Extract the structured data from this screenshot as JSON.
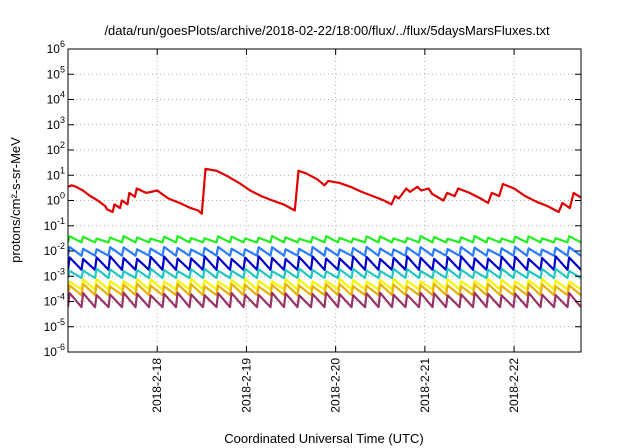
{
  "chart_data": {
    "type": "line",
    "title": "/data/run/goesPlots/archive/2018-02-22/18:00/flux/../flux/5daysMarsFluxes.txt",
    "xlabel": "Coordinated Universal Time (UTC)",
    "ylabel": "protons/cm²-s-sr-MeV",
    "yscale": "log",
    "ylim": [
      1e-06,
      1000000.0
    ],
    "xlim": [
      "2018-02-17 00:00",
      "2018-02-22 18:00"
    ],
    "x_ticks": [
      "2018-2-18",
      "2018-2-19",
      "2018-2-20",
      "2018-2-21",
      "2018-2-22"
    ],
    "y_ticks": [
      {
        "base": "10",
        "exp": "-6"
      },
      {
        "base": "10",
        "exp": "-5"
      },
      {
        "base": "10",
        "exp": "-4"
      },
      {
        "base": "10",
        "exp": "-3"
      },
      {
        "base": "10",
        "exp": "-2"
      },
      {
        "base": "10",
        "exp": "-1"
      },
      {
        "base": "10",
        "exp": "0"
      },
      {
        "base": "10",
        "exp": "1"
      },
      {
        "base": "10",
        "exp": "2"
      },
      {
        "base": "10",
        "exp": "3"
      },
      {
        "base": "10",
        "exp": "4"
      },
      {
        "base": "10",
        "exp": "5"
      },
      {
        "base": "10",
        "exp": "6"
      }
    ],
    "grid": true,
    "series": [
      {
        "color": "#e00000",
        "x": [
          "2018-02-17 00:00",
          "2018-02-17 01:00",
          "2018-02-17 02:00",
          "2018-02-17 04:00",
          "2018-02-17 06:00",
          "2018-02-17 08:00",
          "2018-02-17 10:00",
          "2018-02-17 10:30",
          "2018-02-17 12:00",
          "2018-02-17 12:30",
          "2018-02-17 14:00",
          "2018-02-17 14:30",
          "2018-02-17 16:00",
          "2018-02-17 16:30",
          "2018-02-17 18:00",
          "2018-02-17 18:30",
          "2018-02-17 21:00",
          "2018-02-18 00:00",
          "2018-02-18 03:00",
          "2018-02-18 06:00",
          "2018-02-18 09:00",
          "2018-02-18 11:00",
          "2018-02-18 12:00",
          "2018-02-18 13:00",
          "2018-02-18 16:00",
          "2018-02-18 19:00",
          "2018-02-18 22:00",
          "2018-02-19 01:00",
          "2018-02-19 04:00",
          "2018-02-19 07:00",
          "2018-02-19 10:00",
          "2018-02-19 13:00",
          "2018-02-19 14:00",
          "2018-02-19 16:00",
          "2018-02-19 19:00",
          "2018-02-19 21:00",
          "2018-02-19 22:00",
          "2018-02-20 01:00",
          "2018-02-20 04:00",
          "2018-02-20 07:00",
          "2018-02-20 10:00",
          "2018-02-20 13:00",
          "2018-02-20 15:00",
          "2018-02-20 16:00",
          "2018-02-20 17:00",
          "2018-02-20 19:00",
          "2018-02-20 20:00",
          "2018-02-20 22:00",
          "2018-02-20 23:00",
          "2018-02-21 01:00",
          "2018-02-21 02:00",
          "2018-02-21 05:00",
          "2018-02-21 06:00",
          "2018-02-21 08:00",
          "2018-02-21 09:00",
          "2018-02-21 12:00",
          "2018-02-21 15:00",
          "2018-02-21 17:00",
          "2018-02-21 18:00",
          "2018-02-21 20:00",
          "2018-02-21 21:00",
          "2018-02-22 00:00",
          "2018-02-22 03:00",
          "2018-02-22 06:00",
          "2018-02-22 09:00",
          "2018-02-22 12:00",
          "2018-02-22 13:00",
          "2018-02-22 15:00",
          "2018-02-22 16:00",
          "2018-02-22 18:00"
        ],
        "y": [
          3.5,
          4.0,
          3.6,
          2.5,
          1.5,
          1.0,
          0.6,
          0.45,
          0.35,
          0.7,
          0.5,
          1.0,
          0.7,
          2.0,
          1.4,
          3.0,
          2.0,
          2.5,
          1.2,
          0.8,
          0.5,
          0.4,
          0.3,
          18,
          15,
          9,
          5,
          2.5,
          1.5,
          1.0,
          0.7,
          0.4,
          15,
          12,
          7,
          4,
          6,
          5,
          3.5,
          2.2,
          1.5,
          1.0,
          0.7,
          1.5,
          1.2,
          3.0,
          2.2,
          3.5,
          2.5,
          3.0,
          1.8,
          1.0,
          2.0,
          1.5,
          3.0,
          2.0,
          1.2,
          0.8,
          2.0,
          1.5,
          4.5,
          3.0,
          1.5,
          0.9,
          0.6,
          0.35,
          0.8,
          0.5,
          2.0,
          1.3
        ]
      },
      {
        "color": "#22ee22",
        "x_start": "2018-02-17 00:00",
        "x_end": "2018-02-22 18:00",
        "cycles": 38,
        "peak": 0.035,
        "trough": 0.022
      },
      {
        "color": "#2a7bff",
        "x_start": "2018-02-17 00:00",
        "x_end": "2018-02-22 18:00",
        "cycles": 38,
        "peak": 0.013,
        "trough": 0.0065
      },
      {
        "color": "#0000cc",
        "x_start": "2018-02-17 00:00",
        "x_end": "2018-02-22 18:00",
        "cycles": 38,
        "peak": 0.0055,
        "trough": 0.0018
      },
      {
        "color": "#1fc8c0",
        "x_start": "2018-02-17 00:00",
        "x_end": "2018-02-22 18:00",
        "cycles": 38,
        "peak": 0.0018,
        "trough": 0.00085
      },
      {
        "color": "#f5f500",
        "x_start": "2018-02-17 00:00",
        "x_end": "2018-02-22 18:00",
        "cycles": 38,
        "peak": 0.0007,
        "trough": 0.0003
      },
      {
        "color": "#e8b000",
        "x_start": "2018-02-17 00:00",
        "x_end": "2018-02-22 18:00",
        "cycles": 38,
        "peak": 0.00045,
        "trough": 0.00018
      },
      {
        "color": "#993366",
        "x_start": "2018-02-17 00:00",
        "x_end": "2018-02-22 18:00",
        "cycles": 38,
        "peak": 0.0002,
        "trough": 6e-05
      }
    ]
  }
}
